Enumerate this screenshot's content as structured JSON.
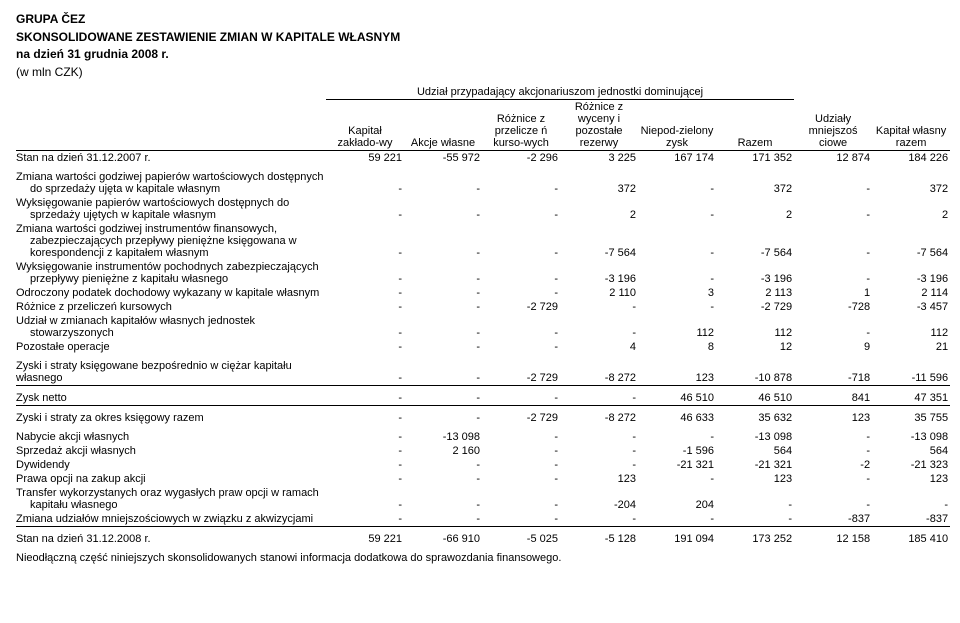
{
  "title_lines": [
    "GRUPA ČEZ",
    "SKONSOLIDOWANE ZESTAWIENIE ZMIAN W KAPITALE WŁASNYM",
    "na dzień 31 grudnia 2008 r."
  ],
  "unit_note": "(w mln CZK)",
  "group_header": "Udział przypadający akcjonariuszom jednostki dominującej",
  "columns": [
    "Kapitał zakłado-wy",
    "Akcje własne",
    "Różnice z przelicze ń kurso-wych",
    "Różnice z wyceny i pozostałe rezerwy",
    "Niepod-zielony zysk",
    "Razem",
    "Udziały mniejszoś ciowe",
    "Kapitał własny razem"
  ],
  "opening": {
    "label": "Stan na dzień 31.12.2007 r.",
    "values": [
      "59 221",
      "-55 972",
      "-2 296",
      "3 225",
      "167 174",
      "171 352",
      "12 874",
      "184 226"
    ]
  },
  "movements": [
    {
      "label": "Zmiana wartości godziwej papierów wartościowych dostępnych do sprzedaży ujęta w kapitale własnym",
      "values": [
        "-",
        "-",
        "-",
        "372",
        "-",
        "372",
        "-",
        "372"
      ]
    },
    {
      "label": "Wyksięgowanie papierów wartościowych dostępnych do sprzedaży ujętych w kapitale własnym",
      "values": [
        "-",
        "-",
        "-",
        "2",
        "-",
        "2",
        "-",
        "2"
      ]
    },
    {
      "label": "Zmiana wartości godziwej instrumentów finansowych, zabezpieczających przepływy pieniężne księgowana w korespondencji z kapitałem własnym",
      "values": [
        "-",
        "-",
        "-",
        "-7 564",
        "-",
        "-7 564",
        "-",
        "-7 564"
      ]
    },
    {
      "label": "Wyksięgowanie instrumentów pochodnych zabezpieczających przepływy pieniężne z kapitału własnego",
      "values": [
        "-",
        "-",
        "-",
        "-3 196",
        "-",
        "-3 196",
        "-",
        "-3 196"
      ]
    },
    {
      "label": "Odroczony podatek dochodowy wykazany w kapitale własnym",
      "values": [
        "-",
        "-",
        "-",
        "2 110",
        "3",
        "2 113",
        "1",
        "2 114"
      ]
    },
    {
      "label": "Różnice z przeliczeń kursowych",
      "values": [
        "-",
        "-",
        "-2 729",
        "-",
        "-",
        "-2 729",
        "-728",
        "-3 457"
      ]
    },
    {
      "label": "Udział w zmianach kapitałów własnych jednostek stowarzyszonych",
      "values": [
        "-",
        "-",
        "-",
        "-",
        "112",
        "112",
        "-",
        "112"
      ]
    },
    {
      "label": "Pozostałe operacje",
      "values": [
        "-",
        "-",
        "-",
        "4",
        "8",
        "12",
        "9",
        "21"
      ]
    }
  ],
  "direct_equity": {
    "label": "Zyski i straty księgowane bezpośrednio w ciężar kapitału własnego",
    "values": [
      "-",
      "-",
      "-2 729",
      "-8 272",
      "123",
      "-10 878",
      "-718",
      "-11 596"
    ]
  },
  "net_profit": {
    "label": "Zysk netto",
    "values": [
      "-",
      "-",
      "-",
      "-",
      "46 510",
      "46 510",
      "841",
      "47 351"
    ]
  },
  "period_total": {
    "label": "Zyski i straty za okres księgowy razem",
    "values": [
      "-",
      "-",
      "-2 729",
      "-8 272",
      "46 633",
      "35 632",
      "123",
      "35 755"
    ]
  },
  "owner_tx": [
    {
      "label": "Nabycie akcji własnych",
      "values": [
        "-",
        "-13 098",
        "-",
        "-",
        "-",
        "-13 098",
        "-",
        "-13 098"
      ]
    },
    {
      "label": "Sprzedaż akcji własnych",
      "values": [
        "-",
        "2 160",
        "-",
        "-",
        "-1 596",
        "564",
        "-",
        "564"
      ]
    },
    {
      "label": "Dywidendy",
      "values": [
        "-",
        "-",
        "-",
        "-",
        "-21 321",
        "-21 321",
        "-2",
        "-21 323"
      ]
    },
    {
      "label": "Prawa opcji na zakup akcji",
      "values": [
        "-",
        "-",
        "-",
        "123",
        "-",
        "123",
        "-",
        "123"
      ]
    },
    {
      "label": "Transfer wykorzystanych oraz wygasłych praw opcji w ramach kapitału własnego",
      "values": [
        "-",
        "-",
        "-",
        "-204",
        "204",
        "-",
        "-",
        "-"
      ]
    },
    {
      "label": "Zmiana udziałów mniejszościowych w związku z akwizycjami",
      "values": [
        "-",
        "-",
        "-",
        "-",
        "-",
        "-",
        "-837",
        "-837"
      ]
    }
  ],
  "closing": {
    "label": "Stan na dzień 31.12.2008 r.",
    "values": [
      "59 221",
      "-66 910",
      "-5 025",
      "-5 128",
      "191 094",
      "173 252",
      "12 158",
      "185 410"
    ]
  },
  "footnote": "Nieodłączną część niniejszych skonsolidowanych stanowi informacja dodatkowa do sprawozdania finansowego."
}
